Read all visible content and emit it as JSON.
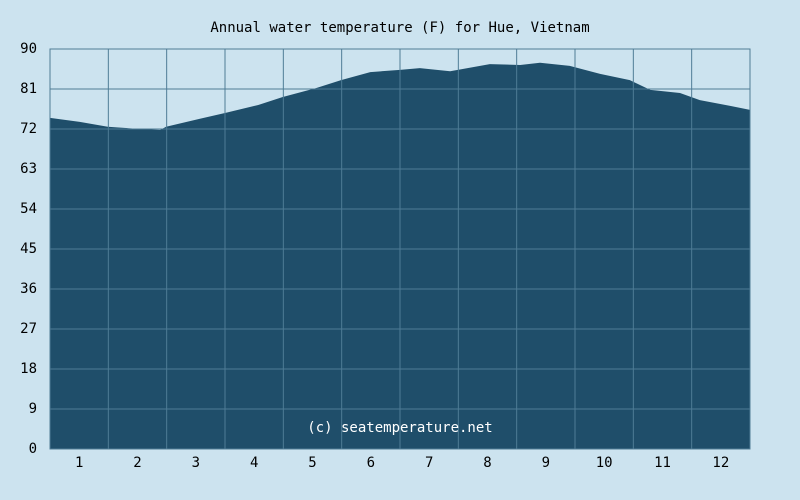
{
  "chart_data": {
    "type": "area",
    "title": "Annual water temperature (F) for Hue, Vietnam",
    "annotation": "(c) seatemperature.net",
    "x": [
      0.5,
      1.01,
      1.49,
      2.04,
      2.39,
      2.49,
      3.07,
      3.5,
      4.07,
      4.49,
      5.06,
      5.49,
      5.99,
      6.5,
      6.84,
      7.36,
      8.04,
      8.56,
      8.9,
      9.41,
      9.93,
      10.44,
      10.79,
      11.3,
      11.64,
      12.16,
      12.5
    ],
    "values": [
      74.5,
      73.6,
      72.5,
      72,
      71.8,
      72.5,
      74.3,
      75.6,
      77.4,
      79.2,
      81.2,
      83,
      84.8,
      85.3,
      85.7,
      85,
      86.6,
      86.4,
      86.9,
      86.2,
      84.4,
      83,
      80.8,
      80.1,
      78.5,
      77.2,
      76.3
    ],
    "color": "#1f4e6a",
    "xlim": [
      0.5,
      12.5
    ],
    "xticks": [
      1,
      2,
      3,
      4,
      5,
      6,
      7,
      8,
      9,
      10,
      11,
      12
    ],
    "ylim": [
      0,
      90
    ],
    "yticks": [
      0,
      9,
      18,
      27,
      36,
      45,
      54,
      63,
      72,
      81,
      90
    ],
    "grid": true
  }
}
